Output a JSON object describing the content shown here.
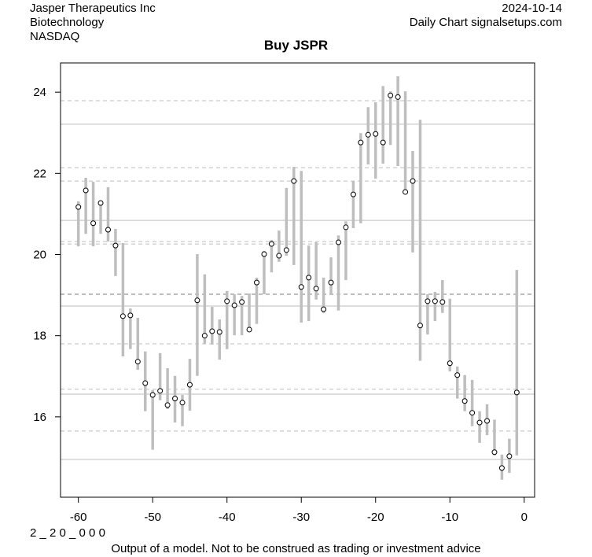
{
  "header": {
    "company": "Jasper Therapeutics Inc",
    "sector": "Biotechnology",
    "exchange": "NASDAQ",
    "date": "2024-10-14",
    "source": "Daily Chart signalsetups.com"
  },
  "footer": {
    "code": "2 _ 2 0 _ 0 0 0",
    "disclaimer": "Output of a model. Not to be construed as trading or investment advice"
  },
  "colors": {
    "bar": "#bebebe",
    "grid": "#bebebe",
    "marker": "#000000"
  },
  "chart_data": {
    "type": "range-bar",
    "title": "Buy JSPR",
    "xlabel": "",
    "ylabel": "",
    "xlim": [
      -62.4,
      1.4
    ],
    "ylim": [
      14.02,
      24.72
    ],
    "xticks": [
      -60,
      -50,
      -40,
      -30,
      -20,
      -10,
      0
    ],
    "yticks": [
      16,
      18,
      20,
      22,
      24
    ],
    "x": [
      -60,
      -59,
      -58,
      -57,
      -56,
      -55,
      -54,
      -53,
      -52,
      -51,
      -50,
      -49,
      -48,
      -47,
      -46,
      -45,
      -44,
      -43,
      -42,
      -41,
      -40,
      -39,
      -38,
      -37,
      -36,
      -35,
      -34,
      -33,
      -32,
      -31,
      -30,
      -29,
      -28,
      -27,
      -26,
      -25,
      -24,
      -23,
      -22,
      -21,
      -20,
      -19,
      -18,
      -17,
      -16,
      -15,
      -14,
      -13,
      -12,
      -11,
      -10,
      -9,
      -8,
      -7,
      -6,
      -5,
      -4,
      -3,
      -2,
      -1
    ],
    "high": [
      21.31,
      21.89,
      21.79,
      21.31,
      21.66,
      20.63,
      20.28,
      18.67,
      18.44,
      17.61,
      16.66,
      17.57,
      17.2,
      17.01,
      16.54,
      17.43,
      20.01,
      19.51,
      18.71,
      18.4,
      19.1,
      19.02,
      18.98,
      19.04,
      19.43,
      20.09,
      20.36,
      20.59,
      21.64,
      22.16,
      22.06,
      20.22,
      20.3,
      19.43,
      19.93,
      20.47,
      20.82,
      21.81,
      22.99,
      23.63,
      23.75,
      24.15,
      24.02,
      24.39,
      24.02,
      22.55,
      23.32,
      19.02,
      19.08,
      19.37,
      18.91,
      17.24,
      17.03,
      16.91,
      16.14,
      16.31,
      15.93,
      15.07,
      15.46,
      19.62
    ],
    "close": [
      21.17,
      21.58,
      20.77,
      21.27,
      20.61,
      20.22,
      18.48,
      18.5,
      17.36,
      16.83,
      16.54,
      16.64,
      16.29,
      16.45,
      16.35,
      16.79,
      18.87,
      18.0,
      18.11,
      18.09,
      18.85,
      18.75,
      18.83,
      18.15,
      19.31,
      20.01,
      20.26,
      19.97,
      20.11,
      21.81,
      19.2,
      19.43,
      19.16,
      18.65,
      19.31,
      20.3,
      20.67,
      21.48,
      22.76,
      22.95,
      22.97,
      22.76,
      23.92,
      23.88,
      21.54,
      21.81,
      18.25,
      18.85,
      18.85,
      18.83,
      17.32,
      17.03,
      16.39,
      16.1,
      15.86,
      15.9,
      15.13,
      14.74,
      15.03,
      16.6
    ],
    "low": [
      20.2,
      20.51,
      20.2,
      20.51,
      20.32,
      19.47,
      17.49,
      17.67,
      17.16,
      16.14,
      15.19,
      16.41,
      16.19,
      15.86,
      15.77,
      16.15,
      17.01,
      17.8,
      17.78,
      17.41,
      17.67,
      18.01,
      18.01,
      18.11,
      18.29,
      19.02,
      19.56,
      19.82,
      19.97,
      19.74,
      18.32,
      18.36,
      18.89,
      18.56,
      19.0,
      18.62,
      19.37,
      20.65,
      20.77,
      22.22,
      21.87,
      22.24,
      22.7,
      22.18,
      21.54,
      20.05,
      17.38,
      18.03,
      18.36,
      18.56,
      17.12,
      16.45,
      16.14,
      15.77,
      15.36,
      15.55,
      15.05,
      14.45,
      14.62,
      15.05
    ],
    "solid_levels": [
      23.21,
      20.84,
      18.73,
      16.56,
      14.95
    ],
    "dashed_levels": [
      23.79,
      22.14,
      21.81,
      20.32,
      20.26,
      17.8,
      16.68,
      15.65
    ],
    "bold_dashed_levels": [
      19.02
    ],
    "grid": false,
    "legend": "none"
  }
}
